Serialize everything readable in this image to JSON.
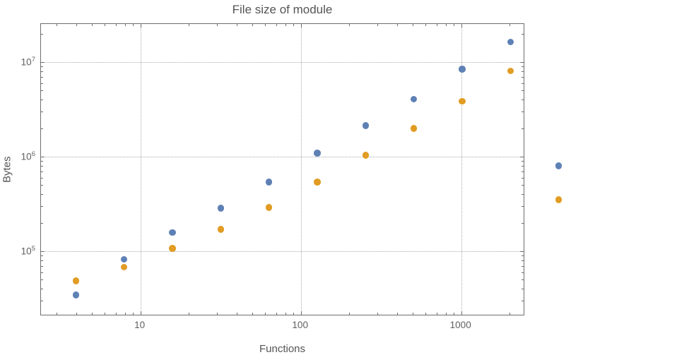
{
  "chart_data": {
    "type": "scatter",
    "title": "File size of module",
    "xlabel": "Functions",
    "ylabel": "Bytes",
    "x_scale": "log",
    "y_scale": "log",
    "xlim": [
      2.4,
      2500
    ],
    "ylim": [
      20600,
      25300000
    ],
    "grid": "dotted-major",
    "legend_position": "none",
    "note": "two rightmost points are drawn outside the plot frame (unclipped)",
    "x_major_ticks": [
      10,
      100,
      1000
    ],
    "x_major_tick_labels": [
      "10",
      "100",
      "1000"
    ],
    "y_tick_base": "10",
    "y_major_ticks": [
      100000,
      1000000,
      10000000
    ],
    "y_major_tick_exponents": [
      "5",
      "6",
      "7"
    ],
    "series": [
      {
        "name": "blue",
        "color": "#5E81B5",
        "x": [
          4,
          8,
          16,
          32,
          64,
          128,
          256,
          512,
          1024,
          2048,
          4096
        ],
        "y": [
          34000,
          81000,
          155000,
          280000,
          530000,
          1070000,
          2100000,
          4000000,
          8300000,
          16000000,
          790000
        ]
      },
      {
        "name": "orange",
        "color": "#E19C24",
        "x": [
          4,
          8,
          16,
          32,
          64,
          128,
          256,
          512,
          1024,
          2048,
          4096
        ],
        "y": [
          48000,
          67000,
          105000,
          167000,
          285000,
          530000,
          1020000,
          1950000,
          3800000,
          7900000,
          345000
        ]
      }
    ]
  }
}
